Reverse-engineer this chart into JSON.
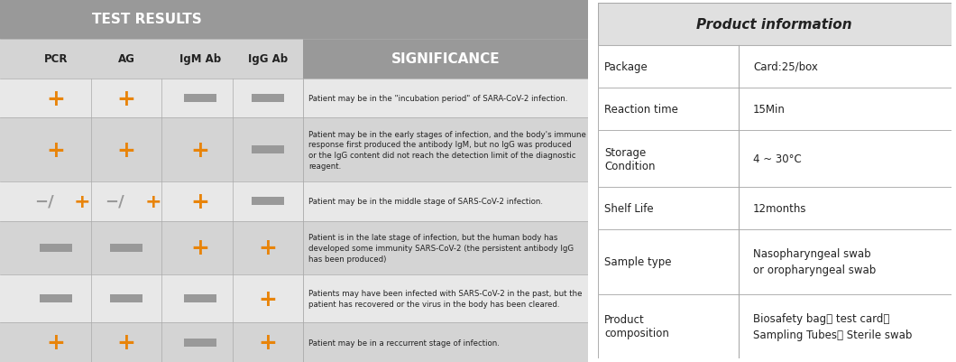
{
  "left_panel_bg": "#c8c8c8",
  "header_bg": "#999999",
  "row_bg_light": "#e8e8e8",
  "row_bg_dark": "#d4d4d4",
  "orange": "#E8840A",
  "gray_symbol": "#999999",
  "text_dark": "#222222",
  "text_header": "#ffffff",
  "header_title": "TEST RESULTS",
  "sig_title": "SIGNIFICANCE",
  "col_headers": [
    "PCR",
    "AG",
    "IgM Ab",
    "IgG Ab"
  ],
  "rows": [
    {
      "pcr": "+",
      "ag": "+",
      "igm": "-",
      "igg": "-",
      "pcr_orange": true,
      "ag_orange": true,
      "igm_orange": false,
      "igg_orange": false,
      "pcr_special": false,
      "ag_special": false,
      "significance": "Patient may be in the \"incubation period\" of SARA-CoV-2 infection."
    },
    {
      "pcr": "+",
      "ag": "+",
      "igm": "+",
      "igg": "-",
      "pcr_orange": true,
      "ag_orange": true,
      "igm_orange": true,
      "igg_orange": false,
      "pcr_special": false,
      "ag_special": false,
      "significance": "Patient may be in the early stages of infection, and the body's immune\nresponse first produced the antibody IgM, but no IgG was produced\nor the IgG content did not reach the detection limit of the diagnostic\nreagent."
    },
    {
      "pcr": "-/+",
      "ag": "-/+",
      "igm": "+",
      "igg": "-",
      "pcr_orange": true,
      "ag_orange": true,
      "igm_orange": true,
      "igg_orange": false,
      "pcr_special": true,
      "ag_special": true,
      "significance": "Patient may be in the middle stage of SARS-CoV-2 infection."
    },
    {
      "pcr": "-",
      "ag": "-",
      "igm": "+",
      "igg": "+",
      "pcr_orange": false,
      "ag_orange": false,
      "igm_orange": true,
      "igg_orange": true,
      "pcr_special": false,
      "ag_special": false,
      "significance": "Patient is in the late stage of infection, but the human body has\ndeveloped some immunity SARS-CoV-2 (the persistent antibody IgG\nhas been produced)"
    },
    {
      "pcr": "-",
      "ag": "-",
      "igm": "-",
      "igg": "+",
      "pcr_orange": false,
      "ag_orange": false,
      "igm_orange": false,
      "igg_orange": true,
      "pcr_special": false,
      "ag_special": false,
      "significance": "Patients may have been infected with SARS-CoV-2 in the past, but the\npatient has recovered or the virus in the body has been cleared."
    },
    {
      "pcr": "+",
      "ag": "+",
      "igm": "-",
      "igg": "+",
      "pcr_orange": true,
      "ag_orange": true,
      "igm_orange": false,
      "igg_orange": true,
      "pcr_special": false,
      "ag_special": false,
      "significance": "Patient may be in a reccurrent stage of infection."
    }
  ],
  "right_table_title": "Product information",
  "right_rows": [
    {
      "label": "Package",
      "value": "Card:25/box"
    },
    {
      "label": "Reaction time",
      "value": "15Min"
    },
    {
      "label": "Storage\nCondition",
      "value": "4 ~ 30°C"
    },
    {
      "label": "Shelf Life",
      "value": "12months"
    },
    {
      "label": "Sample type",
      "value": "Nasopharyngeal swab\nor oropharyngeal swab"
    },
    {
      "label": "Product\ncomposition",
      "value": "Biosafety bag、 test card、\nSampling Tubes、 Sterile swab"
    }
  ],
  "right_bg": "#ffffff",
  "right_border": "#aaaaaa",
  "right_header_bg": "#e0e0e0"
}
